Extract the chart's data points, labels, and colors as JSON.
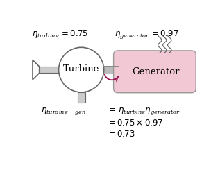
{
  "bg_color": "#ffffff",
  "turbine_label": "Turbine",
  "generator_label": "Generator",
  "turbine_color": "#ffffff",
  "turbine_edge": "#666666",
  "generator_color": "#f2c8d5",
  "generator_edge": "#999999",
  "shaft_color": "#bbbbbb",
  "shaft_edge": "#888888",
  "arrow_color": "#9b1050",
  "wavy_color": "#666666",
  "inlet_color": "#cccccc",
  "inlet_edge": "#666666",
  "pedestal_color": "#cccccc",
  "pedestal_edge": "#666666"
}
